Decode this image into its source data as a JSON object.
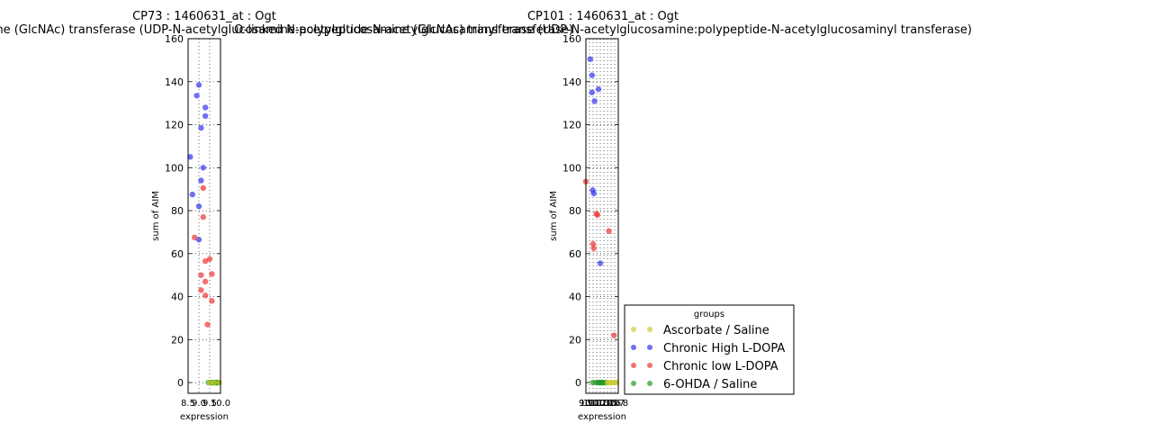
{
  "colors": {
    "ascorbate_saline": "#cccc33",
    "chronic_high": "#3333ee",
    "chronic_low": "#ee3333",
    "ohda_saline": "#229922"
  },
  "legend": {
    "title": "groups",
    "entries": [
      {
        "label": "Ascorbate / Saline",
        "color": "#cccc33"
      },
      {
        "label": "Chronic High L-DOPA",
        "color": "#3333ee"
      },
      {
        "label": "Chronic low L-DOPA",
        "color": "#ee3333"
      },
      {
        "label": "6-OHDA / Saline",
        "color": "#229922"
      }
    ],
    "placement": "lower-right of second panel"
  },
  "chart_data": [
    {
      "type": "scatter",
      "title": "CP73 : 1460631_at : Ogt",
      "subtitle": "O-linked N-acetylglucosamine (GlcNAc) transferase (UDP-N-acetylglucosamine:polypeptide-N-acetylglucosaminyl transferase)",
      "xlabel": "expression",
      "ylabel": "sum of AIM",
      "xlim": [
        8.5,
        10.0
      ],
      "ylim": [
        -5,
        160
      ],
      "xticks": [
        "8.5",
        "9.0",
        "9.5",
        "10.0"
      ],
      "yticks": [
        0,
        20,
        40,
        60,
        80,
        100,
        120,
        140,
        160
      ],
      "grid": true,
      "series": [
        {
          "name": "Chronic High L-DOPA",
          "color": "#3333ee",
          "points": [
            [
              9.0,
              138.5
            ],
            [
              8.9,
              133.5
            ],
            [
              9.3,
              128
            ],
            [
              9.3,
              124
            ],
            [
              9.1,
              118.5
            ],
            [
              8.6,
              105
            ],
            [
              9.2,
              100
            ],
            [
              9.1,
              94
            ],
            [
              8.7,
              87.5
            ],
            [
              9.0,
              82
            ],
            [
              9.0,
              66.5
            ]
          ]
        },
        {
          "name": "Chronic low L-DOPA",
          "color": "#ee3333",
          "points": [
            [
              9.2,
              90.5
            ],
            [
              9.2,
              77
            ],
            [
              8.8,
              67.5
            ],
            [
              9.5,
              57.5
            ],
            [
              9.3,
              56.5
            ],
            [
              9.1,
              50
            ],
            [
              9.6,
              50.5
            ],
            [
              9.3,
              47
            ],
            [
              9.1,
              43
            ],
            [
              9.3,
              40.5
            ],
            [
              9.6,
              38
            ],
            [
              9.4,
              27
            ]
          ]
        },
        {
          "name": "6-OHDA / Saline",
          "color": "#229922",
          "points": [
            [
              9.45,
              0
            ],
            [
              9.55,
              0
            ],
            [
              9.6,
              0
            ],
            [
              9.65,
              0
            ],
            [
              9.7,
              0
            ],
            [
              9.75,
              0
            ],
            [
              9.8,
              0
            ],
            [
              9.85,
              0
            ],
            [
              9.9,
              0
            ]
          ]
        },
        {
          "name": "Ascorbate / Saline",
          "color": "#cccc33",
          "points": [
            [
              9.5,
              0
            ],
            [
              9.7,
              0
            ],
            [
              9.95,
              0
            ]
          ]
        }
      ]
    },
    {
      "type": "scatter",
      "title": "CP101 : 1460631_at : Ogt",
      "subtitle": "O-linked N-acetylglucosamine (GlcNAc) transferase (UDP-N-acetylglucosamine:polypeptide-N-acetylglucosaminyl transferase)",
      "xlabel": "expression",
      "ylabel": "sum of AIM",
      "xlim": [
        9.9,
        10.8
      ],
      "ylim": [
        -5,
        160
      ],
      "xticks": [
        "9.9",
        "10.0",
        "10.1",
        "10.2",
        "10.3",
        "10.4",
        "10.5",
        "10.6",
        "10.7",
        "10.8"
      ],
      "yticks": [
        0,
        20,
        40,
        60,
        80,
        100,
        120,
        140,
        160
      ],
      "grid": true,
      "series": [
        {
          "name": "Chronic High L-DOPA",
          "color": "#3333ee",
          "points": [
            [
              10.02,
              150.5
            ],
            [
              10.07,
              143
            ],
            [
              10.07,
              135
            ],
            [
              10.25,
              136.5
            ],
            [
              10.14,
              131
            ],
            [
              10.09,
              89.5
            ],
            [
              10.12,
              88
            ],
            [
              10.3,
              55.5
            ]
          ]
        },
        {
          "name": "Chronic low L-DOPA",
          "color": "#ee3333",
          "points": [
            [
              9.9,
              93.5
            ],
            [
              10.19,
              78.5
            ],
            [
              10.22,
              78
            ],
            [
              10.54,
              70.5
            ],
            [
              10.1,
              64.5
            ],
            [
              10.12,
              62.5
            ],
            [
              10.68,
              22
            ]
          ]
        },
        {
          "name": "6-OHDA / Saline",
          "color": "#229922",
          "points": [
            [
              10.1,
              0
            ],
            [
              10.2,
              0
            ],
            [
              10.25,
              0
            ],
            [
              10.3,
              0
            ],
            [
              10.32,
              0
            ],
            [
              10.35,
              0
            ],
            [
              10.4,
              0
            ],
            [
              10.45,
              0
            ]
          ]
        },
        {
          "name": "Ascorbate / Saline",
          "color": "#cccc33",
          "points": [
            [
              10.5,
              0
            ],
            [
              10.55,
              0
            ],
            [
              10.6,
              0
            ],
            [
              10.65,
              0
            ],
            [
              10.7,
              0
            ],
            [
              10.75,
              0
            ]
          ]
        }
      ]
    }
  ]
}
